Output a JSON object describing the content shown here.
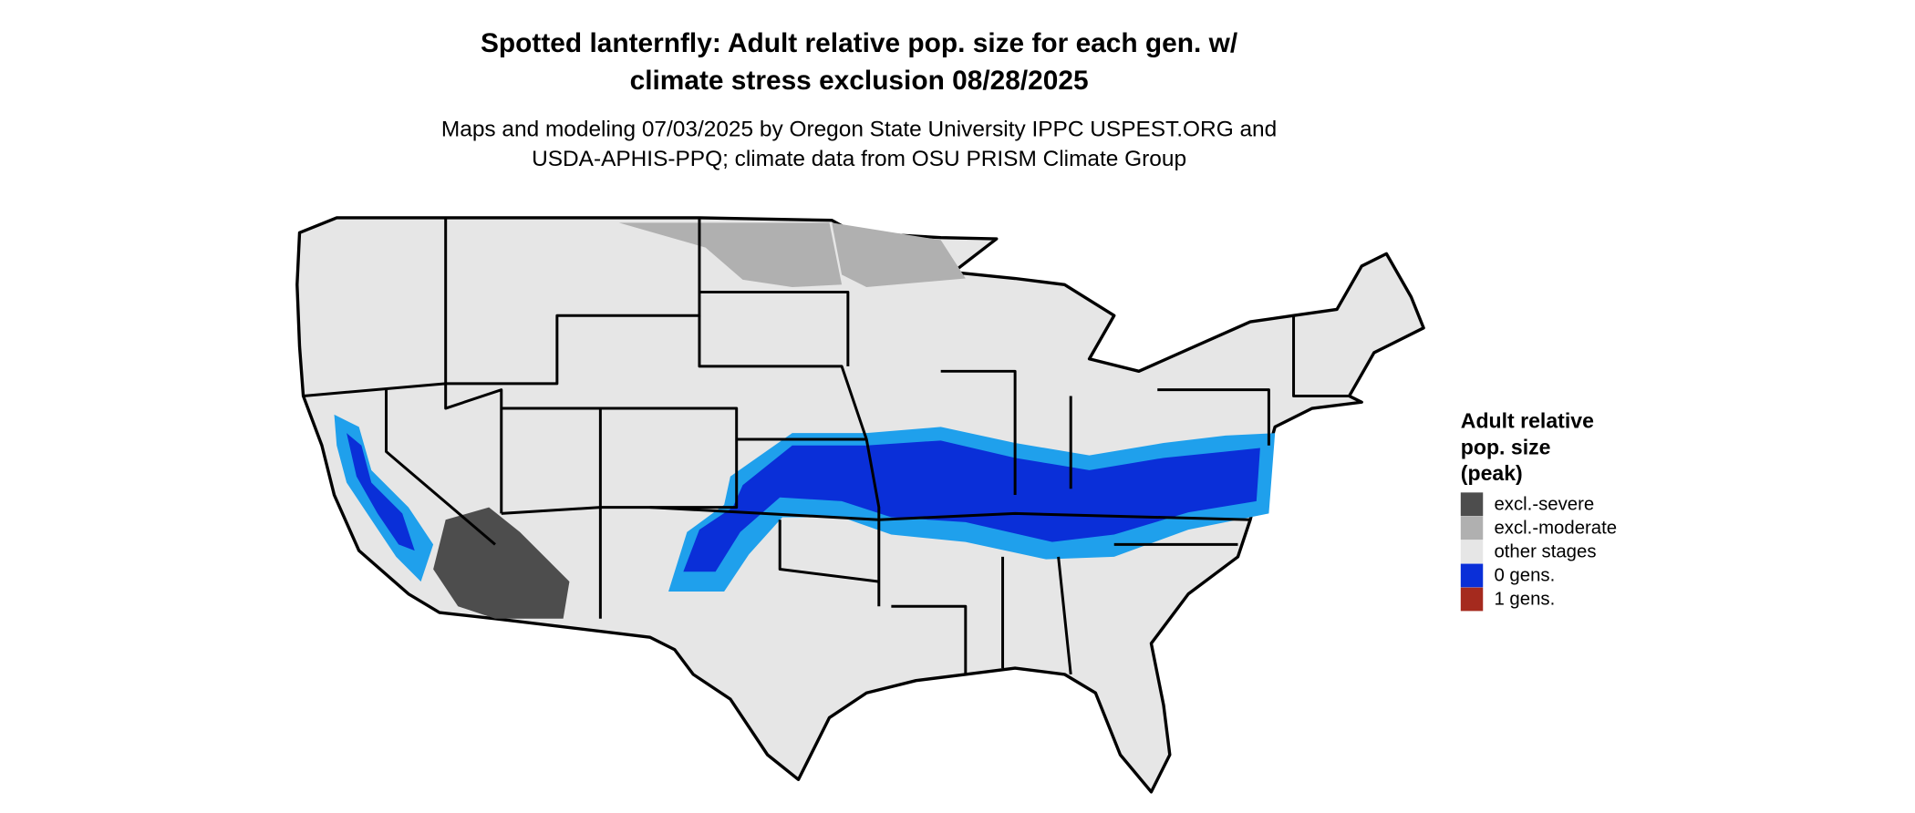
{
  "title_lines": [
    "Spotted lanternfly: Adult relative pop. size for each gen. w/",
    "climate stress exclusion 08/28/2025"
  ],
  "subtitle_lines": [
    "Maps and modeling 07/03/2025 by Oregon State University IPPC USPEST.ORG and",
    "USDA-APHIS-PPQ; climate data from OSU PRISM Climate Group"
  ],
  "legend": {
    "title_lines": [
      "Adult relative",
      "pop. size",
      "(peak)"
    ],
    "items": [
      {
        "label": "excl.-severe",
        "color": "#4d4d4d"
      },
      {
        "label": "excl.-moderate",
        "color": "#b0b0b0"
      },
      {
        "label": "other stages",
        "color": "#e6e6e6"
      },
      {
        "label": "0 gens.",
        "color": "#0a2fd8"
      },
      {
        "label": "1 gens.",
        "color": "#a52a1e"
      }
    ]
  }
}
